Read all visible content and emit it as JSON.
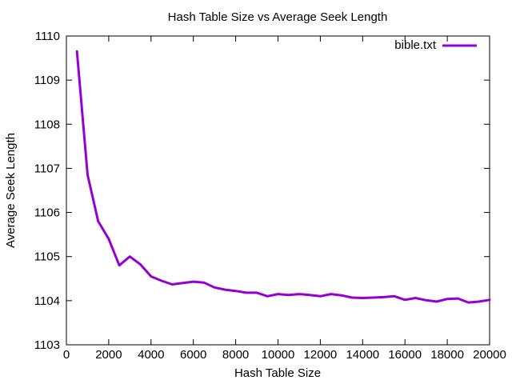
{
  "chart_data": {
    "type": "line",
    "title": "Hash Table Size vs Average Seek Length",
    "xlabel": "Hash Table Size",
    "ylabel": "Average Seek Length",
    "xlim": [
      0,
      20000
    ],
    "ylim": [
      1103,
      1110
    ],
    "xticks": [
      0,
      2000,
      4000,
      6000,
      8000,
      10000,
      12000,
      14000,
      16000,
      18000,
      20000
    ],
    "yticks": [
      1103,
      1104,
      1105,
      1106,
      1107,
      1108,
      1109,
      1110
    ],
    "grid": false,
    "legend_position": "top-right",
    "series": [
      {
        "name": "bible.txt",
        "color": "#9400d3",
        "x": [
          500,
          1000,
          1500,
          2000,
          2500,
          3000,
          3500,
          4000,
          4500,
          5000,
          5500,
          6000,
          6500,
          7000,
          7500,
          8000,
          8500,
          9000,
          9500,
          10000,
          10500,
          11000,
          11500,
          12000,
          12500,
          13000,
          13500,
          14000,
          14500,
          15000,
          15500,
          16000,
          16500,
          17000,
          17500,
          18000,
          18500,
          19000,
          19500,
          20000
        ],
        "y": [
          1109.65,
          1106.85,
          1105.8,
          1105.4,
          1104.8,
          1105.0,
          1104.82,
          1104.55,
          1104.45,
          1104.37,
          1104.4,
          1104.43,
          1104.41,
          1104.3,
          1104.25,
          1104.22,
          1104.18,
          1104.18,
          1104.1,
          1104.15,
          1104.13,
          1104.15,
          1104.13,
          1104.1,
          1104.15,
          1104.12,
          1104.07,
          1104.06,
          1104.07,
          1104.08,
          1104.1,
          1104.02,
          1104.06,
          1104.01,
          1103.98,
          1104.04,
          1104.05,
          1103.96,
          1103.98,
          1104.02
        ]
      }
    ]
  }
}
